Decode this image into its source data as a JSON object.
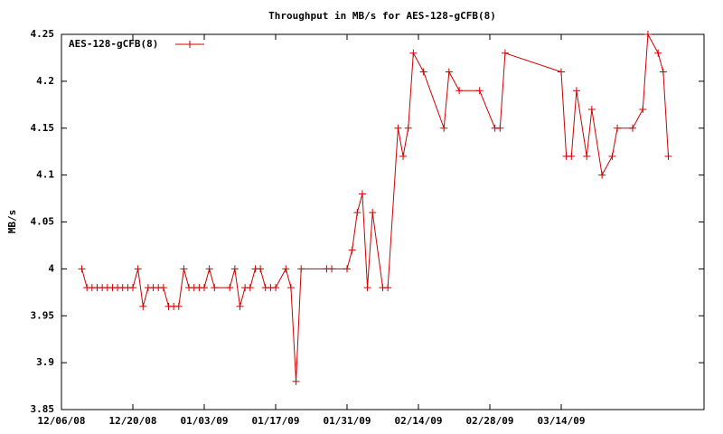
{
  "chart_data": {
    "type": "line",
    "title": "Throughput in MB/s for AES-128-gCFB(8)",
    "ylabel": "MB/s",
    "x": [
      "12/10/08",
      "12/11/08",
      "12/12/08",
      "12/13/08",
      "12/14/08",
      "12/15/08",
      "12/16/08",
      "12/17/08",
      "12/18/08",
      "12/19/08",
      "12/20/08",
      "12/21/08",
      "12/22/08",
      "12/23/08",
      "12/24/08",
      "12/25/08",
      "12/26/08",
      "12/27/08",
      "12/28/08",
      "12/29/08",
      "12/30/08",
      "12/31/08",
      "01/01/09",
      "01/02/09",
      "01/03/09",
      "01/04/09",
      "01/05/09",
      "01/08/09",
      "01/09/09",
      "01/10/09",
      "01/11/09",
      "01/12/09",
      "01/13/09",
      "01/14/09",
      "01/15/09",
      "01/16/09",
      "01/17/09",
      "01/19/09",
      "01/20/09",
      "01/21/09",
      "01/22/09",
      "01/27/09",
      "01/28/09",
      "01/31/09",
      "02/01/09",
      "02/02/09",
      "02/03/09",
      "02/04/09",
      "02/05/09",
      "02/07/09",
      "02/08/09",
      "02/10/09",
      "02/11/09",
      "02/12/09",
      "02/13/09",
      "02/15/09",
      "02/19/09",
      "02/20/09",
      "02/22/09",
      "02/26/09",
      "03/01/09",
      "03/02/09",
      "03/03/09",
      "03/14/09",
      "03/15/09",
      "03/16/09",
      "03/17/09",
      "03/19/09",
      "03/20/09",
      "03/22/09",
      "03/24/09",
      "03/25/09",
      "03/28/09",
      "03/30/09",
      "03/31/09",
      "04/02/09",
      "04/03/09",
      "04/04/09"
    ],
    "series": [
      {
        "name": "AES-128-gCFB(8)",
        "color": "#d00000",
        "values": [
          4.0,
          3.98,
          3.98,
          3.98,
          3.98,
          3.98,
          3.98,
          3.98,
          3.98,
          3.98,
          3.98,
          4.0,
          3.96,
          3.98,
          3.98,
          3.98,
          3.98,
          3.96,
          3.96,
          3.96,
          4.0,
          3.98,
          3.98,
          3.98,
          3.98,
          4.0,
          3.98,
          3.98,
          4.0,
          3.96,
          3.98,
          3.98,
          4.0,
          4.0,
          3.98,
          3.98,
          3.98,
          4.0,
          3.98,
          3.88,
          4.0,
          4.0,
          4.0,
          4.0,
          4.02,
          4.06,
          4.08,
          3.98,
          4.06,
          3.98,
          3.98,
          4.15,
          4.12,
          4.15,
          4.23,
          4.21,
          4.15,
          4.21,
          4.19,
          4.19,
          4.15,
          4.15,
          4.23,
          4.21,
          4.12,
          4.12,
          4.19,
          4.12,
          4.17,
          4.1,
          4.12,
          4.15,
          4.15,
          4.17,
          4.25,
          4.23,
          4.21,
          4.12
        ]
      }
    ],
    "xlim": [
      "12/06/08",
      "04/11/09"
    ],
    "xticks": [
      "12/06/08",
      "12/20/08",
      "01/03/09",
      "01/17/09",
      "01/31/09",
      "02/14/09",
      "02/28/09",
      "03/14/09"
    ],
    "ylim": [
      3.85,
      4.25
    ],
    "yticks": [
      3.85,
      3.9,
      3.95,
      4,
      4.05,
      4.1,
      4.15,
      4.2,
      4.25
    ],
    "legend": "top-left"
  }
}
